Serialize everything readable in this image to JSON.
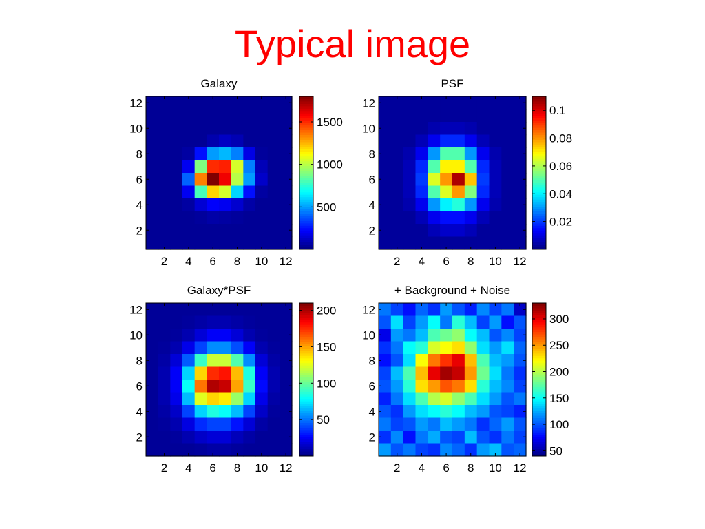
{
  "slide": {
    "title": "Typical image"
  },
  "chart_data": [
    {
      "type": "heatmap",
      "title": "Galaxy",
      "xlabel": "",
      "ylabel": "",
      "xticks": [
        2,
        4,
        6,
        8,
        10,
        12
      ],
      "yticks": [
        2,
        4,
        6,
        8,
        10,
        12
      ],
      "xlim": [
        0.5,
        12.5
      ],
      "ylim": [
        0.5,
        12.5
      ],
      "clim": [
        0,
        1800
      ],
      "colorbar": {
        "ticks": [
          500,
          1000,
          1500
        ],
        "tick_labels": [
          "500",
          "1000",
          "1500"
        ]
      },
      "colormap": "jet",
      "rows_top_to_bottom": [
        [
          40,
          40,
          40,
          40,
          40,
          40,
          40,
          40,
          40,
          40,
          40,
          40
        ],
        [
          40,
          40,
          40,
          40,
          40,
          40,
          40,
          40,
          40,
          40,
          40,
          40
        ],
        [
          40,
          40,
          40,
          40,
          40,
          40,
          40,
          40,
          40,
          40,
          40,
          40
        ],
        [
          40,
          40,
          40,
          40,
          40,
          80,
          120,
          90,
          40,
          40,
          40,
          40
        ],
        [
          40,
          40,
          40,
          60,
          250,
          500,
          550,
          450,
          180,
          50,
          40,
          40
        ],
        [
          40,
          40,
          40,
          200,
          900,
          1500,
          1520,
          1050,
          450,
          100,
          40,
          40
        ],
        [
          40,
          40,
          40,
          400,
          1350,
          1800,
          1600,
          1000,
          500,
          130,
          40,
          40
        ],
        [
          40,
          40,
          40,
          200,
          800,
          1200,
          1050,
          600,
          250,
          60,
          40,
          40
        ],
        [
          40,
          40,
          40,
          60,
          150,
          220,
          200,
          140,
          70,
          40,
          40,
          40
        ],
        [
          40,
          40,
          40,
          40,
          50,
          70,
          60,
          50,
          40,
          40,
          40,
          40
        ],
        [
          40,
          40,
          40,
          40,
          40,
          40,
          40,
          40,
          40,
          40,
          40,
          40
        ],
        [
          40,
          40,
          40,
          40,
          40,
          40,
          40,
          40,
          40,
          40,
          40,
          40
        ]
      ]
    },
    {
      "type": "heatmap",
      "title": "PSF",
      "xlabel": "",
      "ylabel": "",
      "xticks": [
        2,
        4,
        6,
        8,
        10,
        12
      ],
      "yticks": [
        2,
        4,
        6,
        8,
        10,
        12
      ],
      "xlim": [
        0.5,
        12.5
      ],
      "ylim": [
        0.5,
        12.5
      ],
      "clim": [
        0,
        0.11
      ],
      "colorbar": {
        "ticks": [
          0.02,
          0.04,
          0.06,
          0.08,
          0.1
        ],
        "tick_labels": [
          "0.02",
          "0.04",
          "0.06",
          "0.08",
          "0.1"
        ]
      },
      "colormap": "jet",
      "rows_top_to_bottom": [
        [
          0.003,
          0.003,
          0.003,
          0.003,
          0.003,
          0.003,
          0.003,
          0.003,
          0.003,
          0.003,
          0.003,
          0.003
        ],
        [
          0.003,
          0.003,
          0.003,
          0.003,
          0.003,
          0.003,
          0.003,
          0.003,
          0.003,
          0.003,
          0.003,
          0.003
        ],
        [
          0.003,
          0.003,
          0.003,
          0.003,
          0.005,
          0.006,
          0.006,
          0.005,
          0.003,
          0.003,
          0.003,
          0.003
        ],
        [
          0.003,
          0.003,
          0.003,
          0.006,
          0.012,
          0.018,
          0.018,
          0.012,
          0.006,
          0.003,
          0.003,
          0.003
        ],
        [
          0.003,
          0.003,
          0.005,
          0.012,
          0.03,
          0.05,
          0.05,
          0.03,
          0.012,
          0.005,
          0.003,
          0.003
        ],
        [
          0.003,
          0.003,
          0.006,
          0.018,
          0.05,
          0.07,
          0.07,
          0.05,
          0.018,
          0.006,
          0.003,
          0.003
        ],
        [
          0.003,
          0.003,
          0.006,
          0.02,
          0.065,
          0.08,
          0.105,
          0.075,
          0.02,
          0.006,
          0.003,
          0.003
        ],
        [
          0.003,
          0.003,
          0.006,
          0.018,
          0.05,
          0.065,
          0.08,
          0.055,
          0.018,
          0.006,
          0.003,
          0.003
        ],
        [
          0.003,
          0.003,
          0.005,
          0.012,
          0.03,
          0.04,
          0.045,
          0.03,
          0.012,
          0.005,
          0.003,
          0.003
        ],
        [
          0.003,
          0.003,
          0.003,
          0.006,
          0.012,
          0.015,
          0.015,
          0.012,
          0.006,
          0.003,
          0.003,
          0.003
        ],
        [
          0.003,
          0.003,
          0.003,
          0.003,
          0.006,
          0.008,
          0.008,
          0.006,
          0.003,
          0.003,
          0.003,
          0.003
        ],
        [
          0.003,
          0.003,
          0.003,
          0.003,
          0.003,
          0.003,
          0.003,
          0.003,
          0.003,
          0.003,
          0.003,
          0.003
        ]
      ]
    },
    {
      "type": "heatmap",
      "title": "Galaxy*PSF",
      "xlabel": "",
      "ylabel": "",
      "xticks": [
        2,
        4,
        6,
        8,
        10,
        12
      ],
      "yticks": [
        2,
        4,
        6,
        8,
        10,
        12
      ],
      "xlim": [
        0.5,
        12.5
      ],
      "ylim": [
        0.5,
        12.5
      ],
      "clim": [
        0,
        210
      ],
      "colorbar": {
        "ticks": [
          50,
          100,
          150,
          200
        ],
        "tick_labels": [
          "50",
          "100",
          "150",
          "200"
        ]
      },
      "colormap": "jet",
      "rows_top_to_bottom": [
        [
          5,
          5,
          5,
          5,
          5,
          5,
          5,
          5,
          5,
          5,
          5,
          5
        ],
        [
          5,
          5,
          5,
          6,
          8,
          10,
          10,
          8,
          6,
          5,
          5,
          5
        ],
        [
          5,
          5,
          6,
          10,
          18,
          25,
          25,
          18,
          10,
          6,
          5,
          5
        ],
        [
          5,
          6,
          10,
          22,
          40,
          55,
          55,
          42,
          25,
          10,
          6,
          5
        ],
        [
          5,
          8,
          18,
          45,
          90,
          120,
          120,
          95,
          55,
          18,
          8,
          5
        ],
        [
          5,
          10,
          25,
          70,
          140,
          175,
          180,
          145,
          85,
          25,
          10,
          5
        ],
        [
          5,
          10,
          25,
          80,
          160,
          200,
          195,
          150,
          90,
          28,
          10,
          5
        ],
        [
          5,
          10,
          22,
          65,
          125,
          140,
          135,
          110,
          70,
          22,
          8,
          5
        ],
        [
          5,
          8,
          15,
          40,
          70,
          85,
          80,
          65,
          40,
          15,
          6,
          5
        ],
        [
          5,
          6,
          10,
          20,
          35,
          40,
          40,
          30,
          18,
          8,
          5,
          5
        ],
        [
          5,
          5,
          6,
          10,
          15,
          18,
          18,
          12,
          8,
          5,
          5,
          5
        ],
        [
          5,
          5,
          5,
          5,
          6,
          8,
          8,
          6,
          5,
          5,
          5,
          5
        ]
      ]
    },
    {
      "type": "heatmap",
      "title": "+ Background + Noise",
      "xlabel": "",
      "ylabel": "",
      "xticks": [
        2,
        4,
        6,
        8,
        10,
        12
      ],
      "yticks": [
        2,
        4,
        6,
        8,
        10,
        12
      ],
      "xlim": [
        0.5,
        12.5
      ],
      "ylim": [
        0.5,
        12.5
      ],
      "clim": [
        40,
        330
      ],
      "colorbar": {
        "ticks": [
          50,
          100,
          150,
          200,
          250,
          300
        ],
        "tick_labels": [
          "50",
          "100",
          "150",
          "200",
          "250",
          "300"
        ]
      },
      "colormap": "jet",
      "rows_top_to_bottom": [
        [
          110,
          95,
          80,
          105,
          90,
          120,
          100,
          85,
          115,
          95,
          110,
          60
        ],
        [
          100,
          140,
          95,
          120,
          150,
          110,
          160,
          130,
          95,
          120,
          80,
          100
        ],
        [
          70,
          120,
          110,
          130,
          170,
          180,
          190,
          150,
          130,
          100,
          115,
          95
        ],
        [
          90,
          110,
          150,
          160,
          210,
          220,
          230,
          190,
          140,
          120,
          140,
          105
        ],
        [
          80,
          100,
          140,
          220,
          260,
          280,
          300,
          240,
          170,
          130,
          120,
          100
        ],
        [
          95,
          130,
          170,
          240,
          300,
          320,
          310,
          250,
          180,
          140,
          110,
          90
        ],
        [
          100,
          120,
          160,
          230,
          250,
          270,
          260,
          230,
          160,
          130,
          115,
          95
        ],
        [
          85,
          110,
          140,
          170,
          200,
          210,
          190,
          170,
          140,
          120,
          100,
          110
        ],
        [
          100,
          90,
          120,
          140,
          150,
          160,
          150,
          130,
          120,
          100,
          95,
          85
        ],
        [
          110,
          95,
          100,
          120,
          110,
          130,
          120,
          110,
          90,
          105,
          120,
          100
        ],
        [
          90,
          115,
          80,
          110,
          125,
          100,
          95,
          130,
          100,
          90,
          110,
          95
        ],
        [
          120,
          100,
          110,
          95,
          90,
          115,
          105,
          90,
          120,
          130,
          100,
          105
        ]
      ]
    }
  ]
}
